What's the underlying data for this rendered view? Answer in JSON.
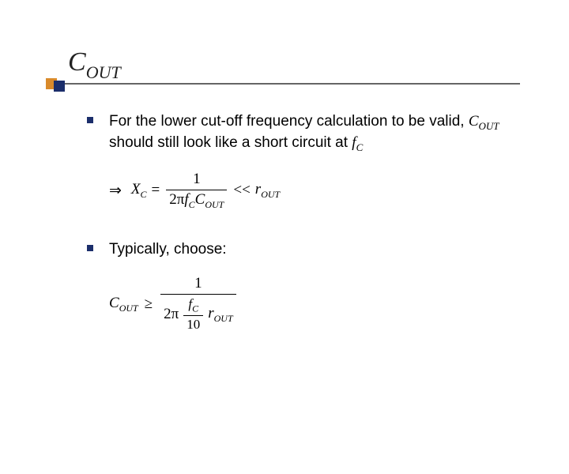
{
  "title": {
    "main": "C",
    "sub": "OUT"
  },
  "bullets": {
    "b1": {
      "pre": "For the lower cut-off frequency calculation to be valid, ",
      "sym1": "C",
      "sym1sub": "OUT",
      "mid": " should still look like a short circuit at ",
      "sym2": "f",
      "sym2sub": "C"
    },
    "b2": {
      "text": "Typically, choose:"
    }
  },
  "formula1": {
    "arrow": "⇒",
    "lhs_var": "X",
    "lhs_sub": "C",
    "eq": "=",
    "num": "1",
    "den_2pi": "2π",
    "den_f": "f",
    "den_fsub": "C",
    "den_C": "C",
    "den_Csub": "OUT",
    "rel": "<<",
    "rhs_var": "r",
    "rhs_sub": "OUT"
  },
  "formula2": {
    "lhs_var": "C",
    "lhs_sub": "OUT",
    "rel": "≥",
    "outer_num": "1",
    "den_2pi": "2π",
    "inner_fnum": "f",
    "inner_fsub": "C",
    "inner_fden": "10",
    "rhs_var": "r",
    "rhs_sub": "OUT"
  },
  "colors": {
    "accent_orange": "#d98a2b",
    "accent_navy": "#1b2e6b",
    "rule": "#666666",
    "text": "#000000",
    "bg": "#ffffff"
  },
  "typography": {
    "title_fontsize": 34,
    "body_fontsize": 19,
    "sub_fontsize": 13
  }
}
